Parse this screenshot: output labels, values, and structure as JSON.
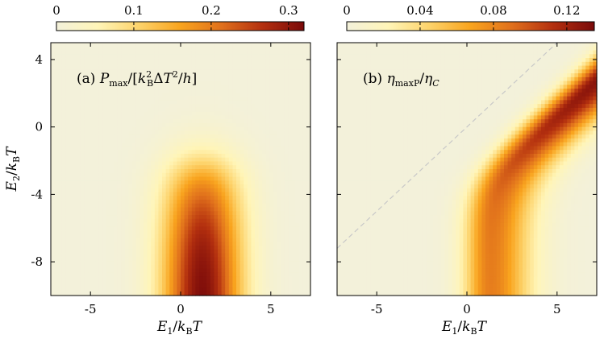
{
  "chart_data": [
    {
      "type": "heatmap",
      "panel_label": "(a)",
      "title": "P_max/[k_B^2 ΔT^2/h]",
      "xlabel": "E_1/k_BT",
      "ylabel": "E_2/k_BT",
      "xlim": [
        -7.2,
        7.2
      ],
      "ylim": [
        -10,
        5
      ],
      "xticks": [
        -5,
        0,
        5
      ],
      "yticks": [
        4,
        0,
        -4,
        -8
      ],
      "colorbar": {
        "range": [
          0,
          0.32
        ],
        "ticks": [
          0,
          0.1,
          0.2,
          0.3
        ],
        "colors": [
          "#f3f1da",
          "#fff5b8",
          "#fdd36b",
          "#f9a41e",
          "#e0701c",
          "#b32f0f",
          "#7a0a0a"
        ]
      },
      "feature": {
        "description": "vertical band of high values centered near E_1 ≈ 1.2, extending from E_2 = -10 up to a rounded cap near E_2 ≈ -1",
        "center_x": 1.2,
        "peak_value": 0.32,
        "cap_y": -1
      }
    },
    {
      "type": "heatmap",
      "panel_label": "(b)",
      "title": "η_maxP/η_C",
      "xlabel": "E_1/k_BT",
      "ylabel": "",
      "xlim": [
        -7.2,
        7.2
      ],
      "ylim": [
        -10,
        5
      ],
      "xticks": [
        -5,
        0,
        5
      ],
      "yticks": [
        4,
        0,
        -4,
        -8
      ],
      "reference_line": {
        "style": "dashed",
        "color": "#bdbdbd",
        "equation": "E_2 = E_1"
      },
      "colorbar": {
        "range": [
          0,
          0.135
        ],
        "ticks": [
          0,
          0.04,
          0.08,
          0.12
        ],
        "colors": [
          "#f3f1da",
          "#fff5b8",
          "#fdd36b",
          "#f9a41e",
          "#e0701c",
          "#b32f0f",
          "#7a0a0a"
        ]
      },
      "feature": {
        "description": "band of high values that is vertical near E_1 ≈ 1 for low E_2 and bends to follow a line parallel to E_2 = E_1 - 2 for E_2 above about -3",
        "peak_value": 0.135
      }
    }
  ]
}
